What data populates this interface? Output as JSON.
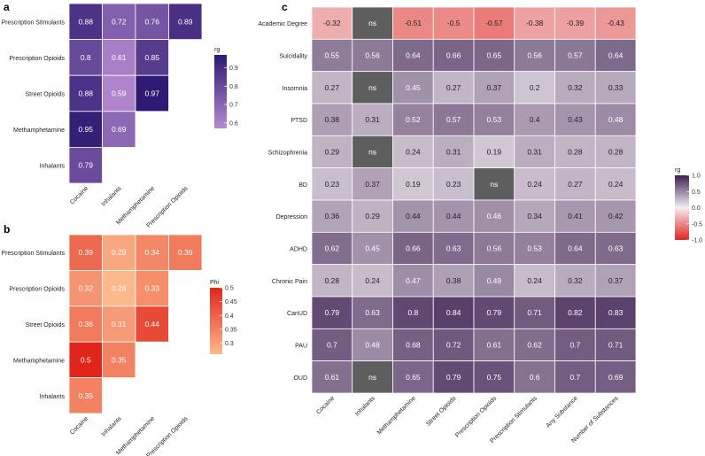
{
  "chart_data": [
    {
      "panel": "a",
      "type": "heatmap",
      "rows": [
        "Prescription Stimulants",
        "Prescription Opioids",
        "Street Opioids",
        "Methamphetamine",
        "Inhalants"
      ],
      "cols": [
        "Cocaine",
        "Inhalants",
        "Methamphetamine",
        "Prescription Opioids"
      ],
      "values": [
        [
          0.88,
          0.72,
          0.76,
          0.89
        ],
        [
          0.8,
          0.61,
          0.85,
          null
        ],
        [
          0.88,
          0.59,
          0.97,
          null
        ],
        [
          0.95,
          0.69,
          null,
          null
        ],
        [
          0.79,
          null,
          null,
          null
        ]
      ],
      "legend_title": "rg",
      "legend_ticks": [
        0.9,
        0.8,
        0.7,
        0.6
      ],
      "scale": {
        "min": 0.57,
        "max": 0.97,
        "low_color": "#b68ad0",
        "high_color": "#2e1a72"
      }
    },
    {
      "panel": "b",
      "type": "heatmap",
      "rows": [
        "Prescription Stimulants",
        "Prescription Opioids",
        "Street Opioids",
        "Methamphetamine",
        "Inhalants"
      ],
      "cols": [
        "Cocaine",
        "Inhalants",
        "Methamphetamine",
        "Prescription Opioids"
      ],
      "values": [
        [
          0.39,
          0.29,
          0.34,
          0.36
        ],
        [
          0.32,
          0.26,
          0.33,
          null
        ],
        [
          0.36,
          0.31,
          0.44,
          null
        ],
        [
          0.5,
          0.35,
          null,
          null
        ],
        [
          0.35,
          null,
          null,
          null
        ]
      ],
      "legend_title": "Phi",
      "legend_ticks": [
        0.5,
        0.45,
        0.4,
        0.35,
        0.3
      ],
      "scale": {
        "min": 0.26,
        "max": 0.5,
        "low_color": "#fbb98c",
        "high_color": "#e2251c"
      }
    },
    {
      "panel": "c",
      "type": "heatmap",
      "rows": [
        "Academic Degree",
        "Suicidality",
        "Insomnia",
        "PTSD",
        "Schizophrenia",
        "BD",
        "Depression",
        "ADHD",
        "Chronic Pain",
        "CanUD",
        "PAU",
        "OUD"
      ],
      "cols": [
        "Cocaine",
        "Inhalants",
        "Methamphetamine",
        "Street Opioids",
        "Prescription Opioids",
        "Prescription Stimulants",
        "Any Substance",
        "Number of Substances"
      ],
      "values": [
        [
          -0.32,
          "ns",
          -0.51,
          -0.5,
          -0.57,
          -0.38,
          -0.39,
          -0.43
        ],
        [
          0.55,
          0.56,
          0.64,
          0.66,
          0.65,
          0.56,
          0.57,
          0.64
        ],
        [
          0.27,
          "ns",
          0.45,
          0.27,
          0.37,
          0.2,
          0.32,
          0.33
        ],
        [
          0.38,
          0.31,
          0.52,
          0.57,
          0.53,
          0.4,
          0.43,
          0.48
        ],
        [
          0.29,
          "ns",
          0.24,
          0.31,
          0.19,
          0.31,
          0.28,
          0.28
        ],
        [
          0.23,
          0.37,
          0.19,
          0.23,
          "ns",
          0.24,
          0.27,
          0.24
        ],
        [
          0.36,
          0.29,
          0.44,
          0.44,
          0.46,
          0.34,
          0.41,
          0.42
        ],
        [
          0.62,
          0.45,
          0.66,
          0.63,
          0.56,
          0.53,
          0.64,
          0.63
        ],
        [
          0.28,
          0.24,
          0.47,
          0.38,
          0.49,
          0.24,
          0.32,
          0.37
        ],
        [
          0.79,
          0.63,
          0.8,
          0.84,
          0.79,
          0.71,
          0.82,
          0.83
        ],
        [
          0.7,
          0.48,
          0.68,
          0.72,
          0.61,
          0.62,
          0.7,
          0.71
        ],
        [
          0.61,
          "ns",
          0.65,
          0.79,
          0.75,
          0.6,
          0.7,
          0.69
        ]
      ],
      "legend_title": "rg",
      "legend_ticks": [
        1.0,
        0.5,
        0.0,
        -0.5,
        -1.0
      ],
      "legend_tick_labels": [
        "1.0",
        "0.5",
        "0.0",
        "-0.5",
        "-1.0"
      ],
      "scale": {
        "min": -1.0,
        "max": 1.0,
        "low_color": "#e2251c",
        "mid_color": "#f4eef2",
        "high_color": "#3b1f50",
        "ns_color": "#5e5e5e"
      }
    }
  ]
}
